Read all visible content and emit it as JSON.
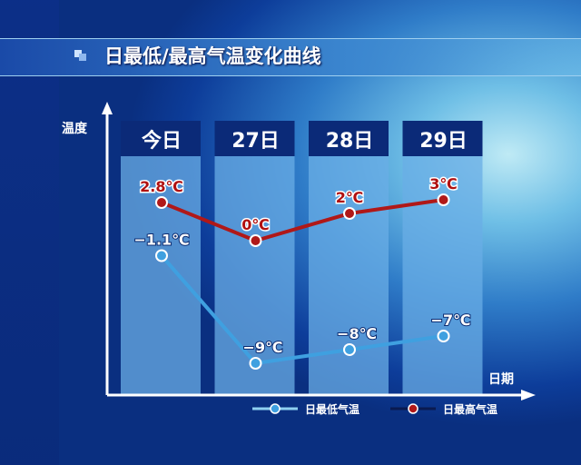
{
  "title": "日最低/最高气温变化曲线",
  "chart_data": {
    "type": "line",
    "title": "日最低/最高气温变化曲线",
    "ylabel": "温度",
    "xlabel": "日期",
    "categories": [
      "今日",
      "27日",
      "28日",
      "29日"
    ],
    "series": [
      {
        "name": "日最高气温",
        "values": [
          2.8,
          0,
          2,
          3
        ],
        "labels": [
          "2.8℃",
          "0℃",
          "2℃",
          "3℃"
        ],
        "color": "#b01818"
      },
      {
        "name": "日最低气温",
        "values": [
          -1.1,
          -9,
          -8,
          -7
        ],
        "labels": [
          "−1.1℃",
          "−9℃",
          "−8℃",
          "−7℃"
        ],
        "color": "#3fa0e0"
      }
    ],
    "legend": "bottom",
    "grid": false
  },
  "colors": {
    "header": "#0b2a78",
    "column": "#6aaee6"
  }
}
